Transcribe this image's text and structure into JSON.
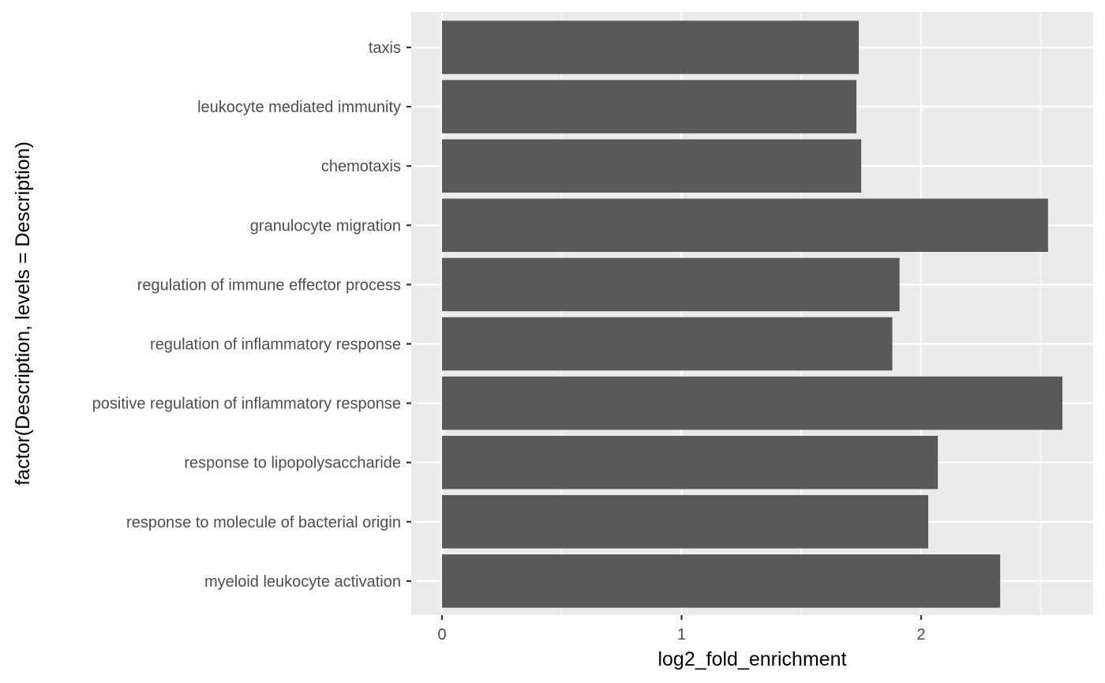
{
  "chart_data": {
    "type": "bar",
    "orientation": "horizontal",
    "xlabel": "log2_fold_enrichment",
    "ylabel": "factor(Description, levels = Description)",
    "xlim": [
      0,
      2.72
    ],
    "x_ticks": [
      0,
      1,
      2
    ],
    "grid": true,
    "colors": {
      "bar": "#595959",
      "panel": "#ebebeb",
      "grid": "#ffffff",
      "tick": "#333333"
    },
    "categories": [
      "taxis",
      "leukocyte mediated immunity",
      "chemotaxis",
      "granulocyte migration",
      "regulation of immune effector process",
      "regulation of inflammatory response",
      "positive regulation of inflammatory response",
      "response to lipopolysaccharide",
      "response to molecule of bacterial origin",
      "myeloid leukocyte activation"
    ],
    "values": [
      1.74,
      1.73,
      1.75,
      2.53,
      1.91,
      1.88,
      2.59,
      2.07,
      2.03,
      2.33
    ]
  }
}
